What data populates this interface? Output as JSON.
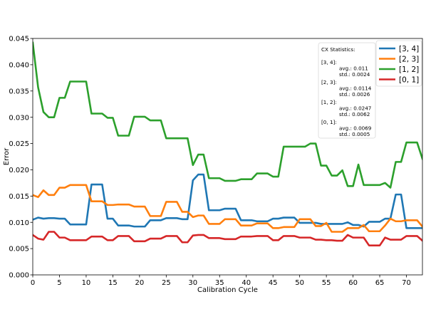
{
  "chart_data": {
    "type": "line",
    "title": "",
    "xlabel": "Calibration Cycle",
    "ylabel": "Error",
    "xlim": [
      0,
      73
    ],
    "ylim": [
      0,
      0.045
    ],
    "xticks": [
      0,
      5,
      10,
      15,
      20,
      25,
      30,
      35,
      40,
      45,
      50,
      55,
      60,
      65,
      70
    ],
    "xtick_labels": [
      "0",
      "5",
      "10",
      "15",
      "20",
      "25",
      "30",
      "35",
      "40",
      "45",
      "50",
      "55",
      "60",
      "65",
      "70"
    ],
    "yticks": [
      0,
      0.005,
      0.01,
      0.015,
      0.02,
      0.025,
      0.03,
      0.035,
      0.04,
      0.045
    ],
    "ytick_labels": [
      "0.000",
      "0.005",
      "0.010",
      "0.015",
      "0.020",
      "0.025",
      "0.030",
      "0.035",
      "0.040",
      "0.045"
    ],
    "grid": false,
    "legend_position": "top-right",
    "series": [
      {
        "name": "[3, 4]",
        "color": "#1f77b4",
        "values": [
          0.0105,
          0.0109,
          0.0107,
          0.0108,
          0.0108,
          0.0107,
          0.0107,
          0.0096,
          0.0096,
          0.0096,
          0.0096,
          0.0172,
          0.0172,
          0.0172,
          0.0107,
          0.0107,
          0.0094,
          0.0094,
          0.0094,
          0.0092,
          0.0092,
          0.0092,
          0.0104,
          0.0104,
          0.0104,
          0.0108,
          0.0108,
          0.0108,
          0.0106,
          0.0106,
          0.018,
          0.0191,
          0.0191,
          0.0123,
          0.0123,
          0.0123,
          0.0126,
          0.0126,
          0.0126,
          0.0104,
          0.0104,
          0.0104,
          0.0102,
          0.0102,
          0.0102,
          0.0107,
          0.0107,
          0.0109,
          0.0109,
          0.0109,
          0.0099,
          0.0099,
          0.0099,
          0.0099,
          0.0097,
          0.0097,
          0.0097,
          0.0097,
          0.0097,
          0.01,
          0.0095,
          0.0095,
          0.0092,
          0.0101,
          0.0101,
          0.0101,
          0.0107,
          0.0107,
          0.0153,
          0.0153,
          0.0089,
          0.0089,
          0.0089,
          0.0089
        ]
      },
      {
        "name": "[2, 3]",
        "color": "#ff7f0e",
        "values": [
          0.0152,
          0.0148,
          0.0161,
          0.0152,
          0.0152,
          0.0166,
          0.0166,
          0.0171,
          0.0171,
          0.0171,
          0.0171,
          0.014,
          0.014,
          0.014,
          0.0133,
          0.0133,
          0.0134,
          0.0134,
          0.0134,
          0.013,
          0.013,
          0.013,
          0.0112,
          0.0112,
          0.0112,
          0.0139,
          0.0139,
          0.0139,
          0.012,
          0.012,
          0.011,
          0.0113,
          0.0113,
          0.0097,
          0.0097,
          0.0097,
          0.0106,
          0.0106,
          0.0106,
          0.0094,
          0.0094,
          0.0094,
          0.0098,
          0.0098,
          0.0098,
          0.0089,
          0.0089,
          0.0091,
          0.0091,
          0.0091,
          0.0106,
          0.0106,
          0.0106,
          0.0093,
          0.0093,
          0.0099,
          0.0082,
          0.0082,
          0.0082,
          0.0089,
          0.0089,
          0.0089,
          0.0095,
          0.0083,
          0.0083,
          0.0083,
          0.0094,
          0.0107,
          0.0102,
          0.0102,
          0.0104,
          0.0104,
          0.0104,
          0.0092
        ]
      },
      {
        "name": "[1, 2]",
        "color": "#2ca02c",
        "values": [
          0.0442,
          0.0357,
          0.031,
          0.03,
          0.03,
          0.0337,
          0.0337,
          0.0368,
          0.0368,
          0.0368,
          0.0368,
          0.0307,
          0.0307,
          0.0307,
          0.0299,
          0.0299,
          0.0265,
          0.0265,
          0.0265,
          0.0301,
          0.0301,
          0.0301,
          0.0294,
          0.0294,
          0.0294,
          0.026,
          0.026,
          0.026,
          0.026,
          0.026,
          0.0209,
          0.0229,
          0.0229,
          0.0184,
          0.0184,
          0.0184,
          0.0179,
          0.0179,
          0.0179,
          0.0182,
          0.0182,
          0.0182,
          0.0193,
          0.0193,
          0.0193,
          0.0187,
          0.0187,
          0.0244,
          0.0244,
          0.0244,
          0.0244,
          0.0244,
          0.025,
          0.025,
          0.0208,
          0.0208,
          0.0189,
          0.0189,
          0.0199,
          0.0169,
          0.0169,
          0.021,
          0.0171,
          0.0171,
          0.0171,
          0.0171,
          0.0175,
          0.0166,
          0.0215,
          0.0215,
          0.0252,
          0.0252,
          0.0252,
          0.0221
        ]
      },
      {
        "name": "[0, 1]",
        "color": "#d62728",
        "values": [
          0.0076,
          0.0069,
          0.0067,
          0.0082,
          0.0082,
          0.0071,
          0.0071,
          0.0066,
          0.0066,
          0.0066,
          0.0066,
          0.0073,
          0.0073,
          0.0073,
          0.0066,
          0.0066,
          0.0074,
          0.0074,
          0.0074,
          0.0064,
          0.0064,
          0.0064,
          0.0069,
          0.0069,
          0.0069,
          0.0074,
          0.0074,
          0.0074,
          0.0062,
          0.0062,
          0.0075,
          0.0076,
          0.0076,
          0.007,
          0.007,
          0.007,
          0.0068,
          0.0068,
          0.0068,
          0.0073,
          0.0073,
          0.0073,
          0.0074,
          0.0074,
          0.0074,
          0.0066,
          0.0066,
          0.0074,
          0.0074,
          0.0074,
          0.0071,
          0.0071,
          0.0071,
          0.0067,
          0.0067,
          0.0066,
          0.0066,
          0.0065,
          0.0065,
          0.0076,
          0.0071,
          0.0071,
          0.0071,
          0.0056,
          0.0056,
          0.0056,
          0.0071,
          0.0067,
          0.0067,
          0.0067,
          0.0074,
          0.0074,
          0.0074,
          0.0065
        ]
      }
    ],
    "stats_box": {
      "title": "CX Statistics:",
      "entries": [
        {
          "key": "[3, 4]:",
          "avg": "avg.: 0.011",
          "std": "std.: 0.0024"
        },
        {
          "key": "[2, 3]:",
          "avg": "avg.: 0.0114",
          "std": "std.: 0.0026"
        },
        {
          "key": "[1, 2]:",
          "avg": "avg.: 0.0247",
          "std": "std.: 0.0062"
        },
        {
          "key": "[0, 1]:",
          "avg": "avg.: 0.0069",
          "std": "std.: 0.0005"
        }
      ]
    }
  }
}
